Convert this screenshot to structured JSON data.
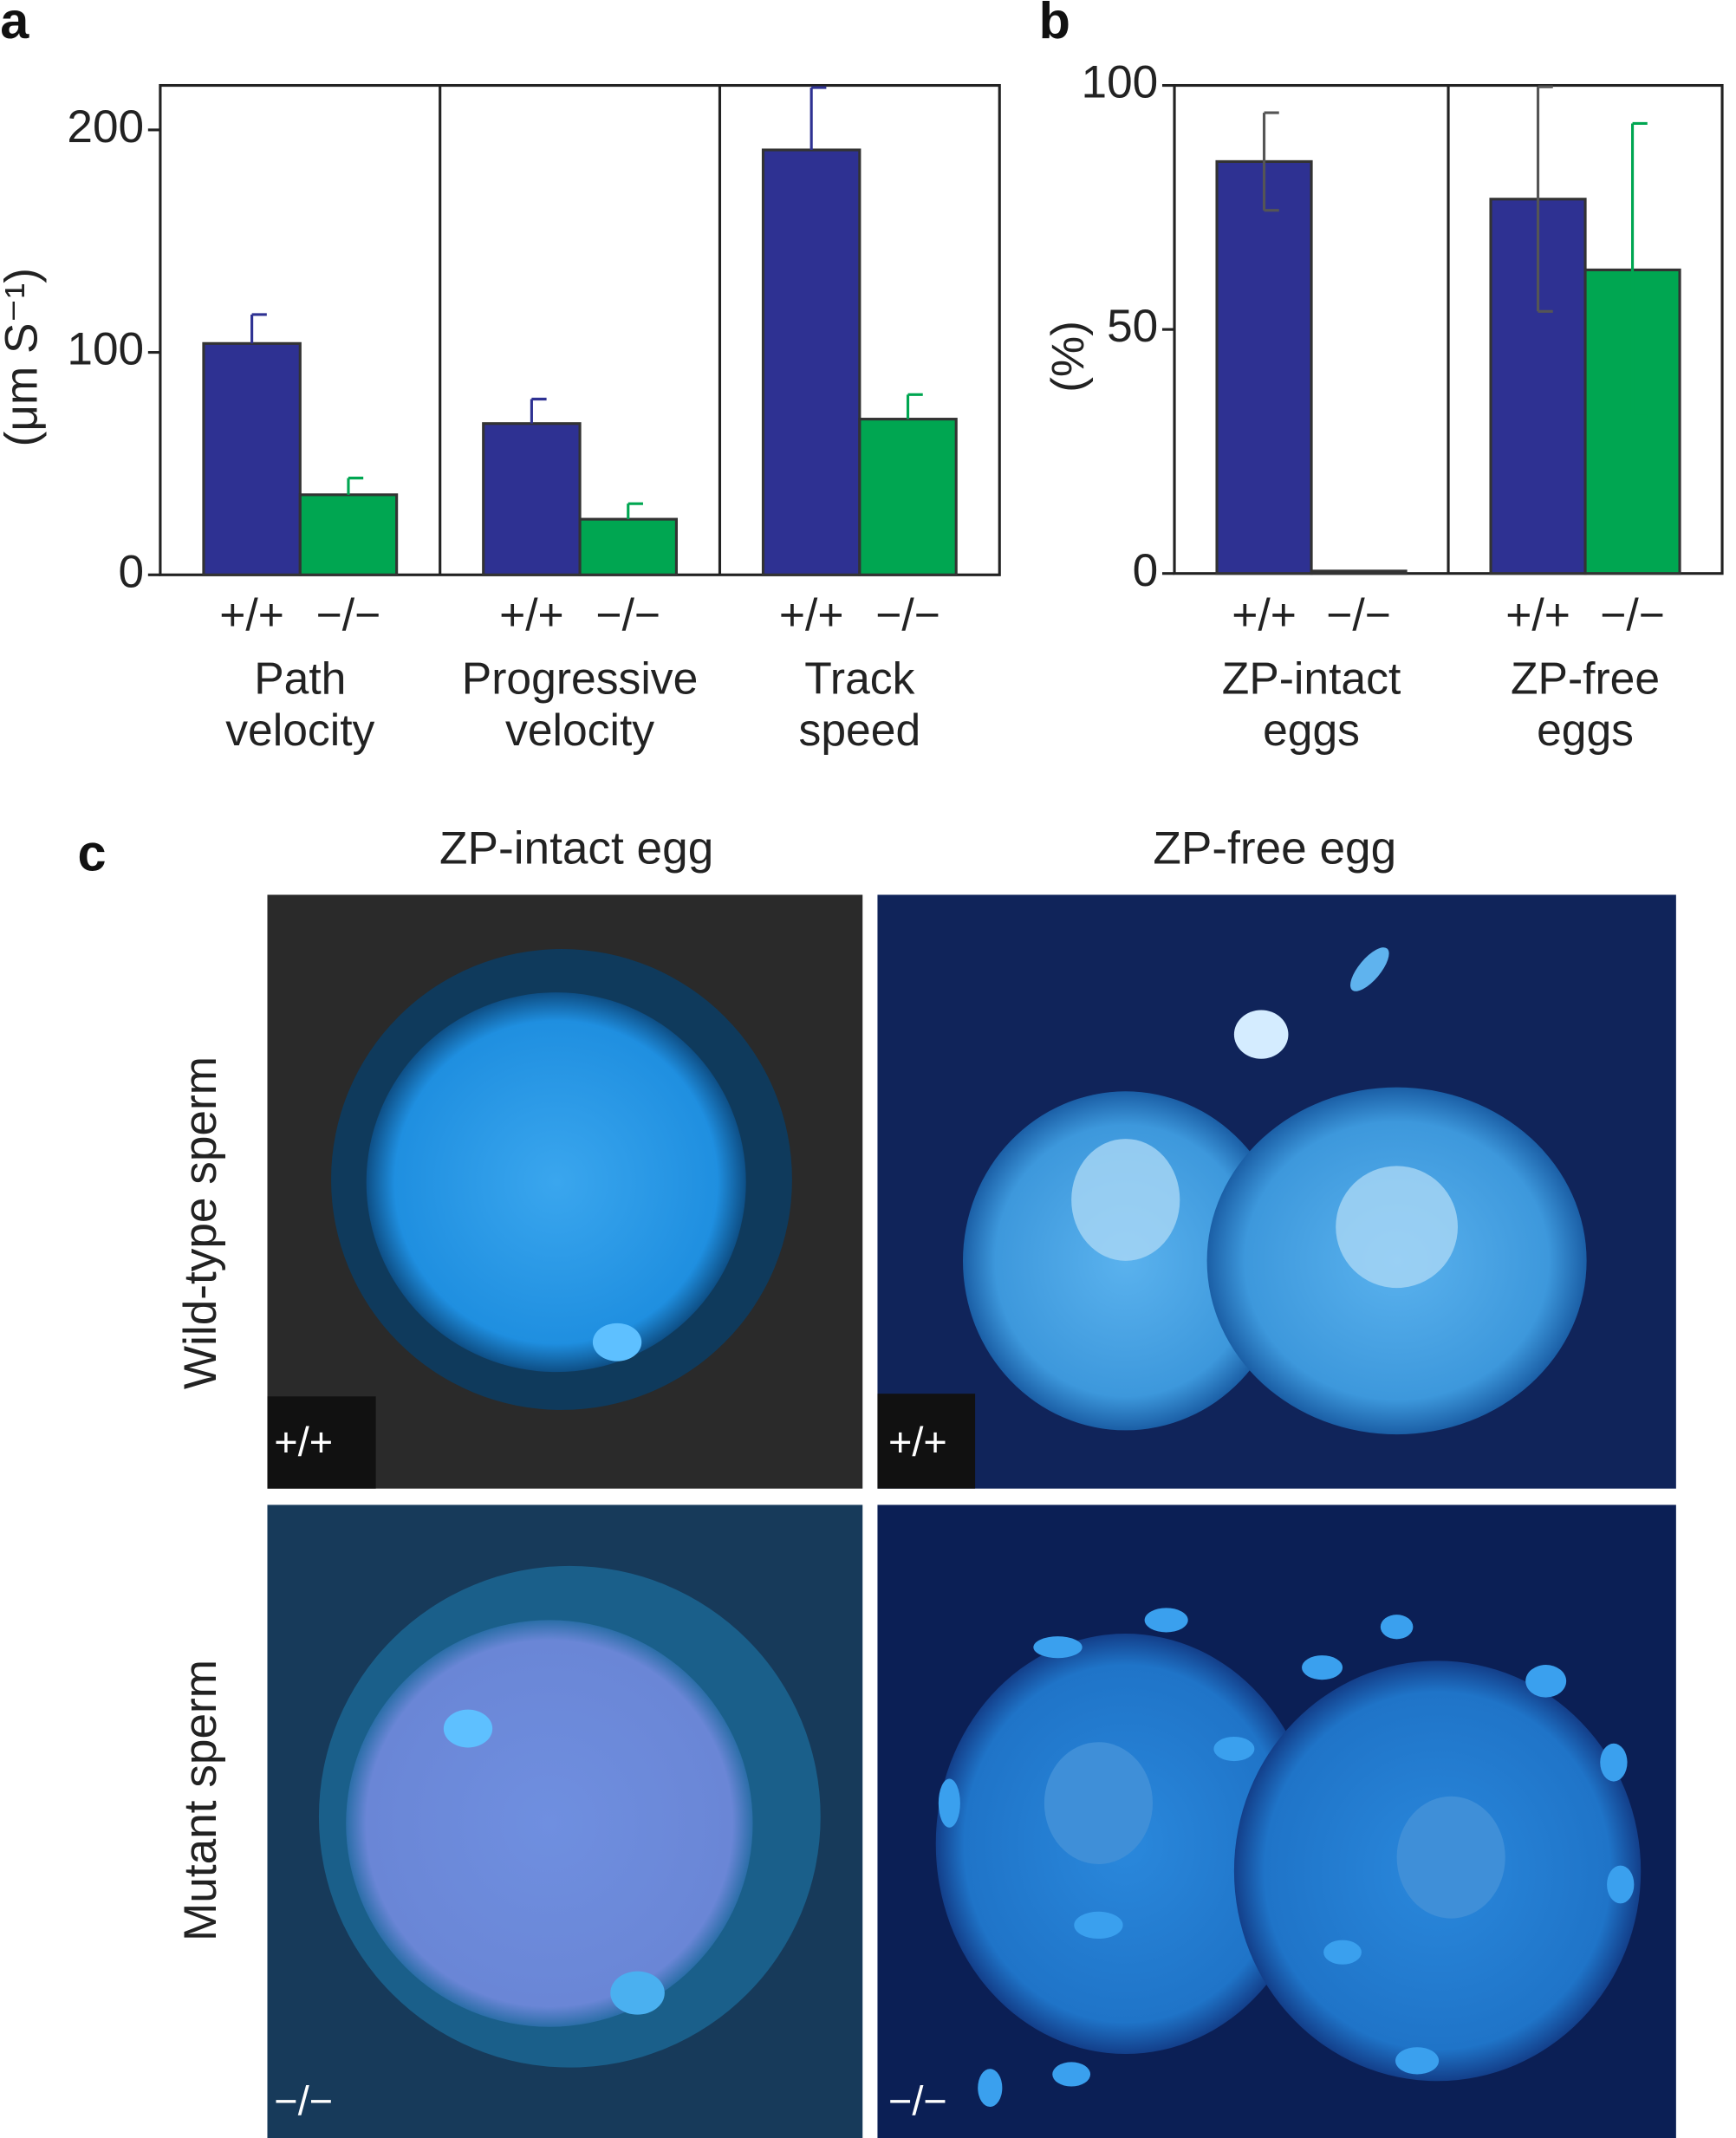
{
  "chart_data": [
    {
      "type": "bar",
      "panel_label": "a",
      "ylabel": "(μm S⁻¹)",
      "categories": [
        [
          "Path",
          "velocity"
        ],
        [
          "Progressive",
          "velocity"
        ],
        [
          "Track",
          "speed"
        ]
      ],
      "series": [
        {
          "name": "+/+",
          "color": "#2e3192",
          "values": [
            104,
            68,
            191
          ],
          "errors": [
            13,
            11,
            28
          ]
        },
        {
          "name": "−/−",
          "color": "#00a651",
          "values": [
            36,
            25,
            70
          ],
          "errors": [
            7.5,
            7,
            11
          ]
        }
      ],
      "ylim": [
        0,
        220
      ],
      "yticks": [
        0,
        100,
        200
      ],
      "error_bars": "up"
    },
    {
      "type": "bar",
      "panel_label": "b",
      "ylabel": "(%)",
      "categories": [
        [
          "ZP-intact",
          "eggs"
        ],
        [
          "ZP-free",
          "eggs"
        ]
      ],
      "series": [
        {
          "name": "+/+",
          "color": "#2e3192",
          "values": [
            84.4,
            76.7
          ],
          "errors": [
            10,
            23
          ]
        },
        {
          "name": "−/−",
          "color": "#00a651",
          "values": [
            0.5,
            62.2
          ],
          "errors": [
            null,
            30
          ]
        }
      ],
      "ylim": [
        0,
        100
      ],
      "yticks": [
        0,
        50,
        100
      ],
      "error_bars": "both"
    }
  ],
  "panel_c": {
    "label": "c",
    "columns": [
      "ZP-intact egg",
      "ZP-free egg"
    ],
    "rows": [
      "Wild-type sperm",
      "Mutant sperm"
    ],
    "image_labels": [
      [
        "+/+",
        "+/+"
      ],
      [
        "−/−",
        "−/−"
      ]
    ]
  }
}
